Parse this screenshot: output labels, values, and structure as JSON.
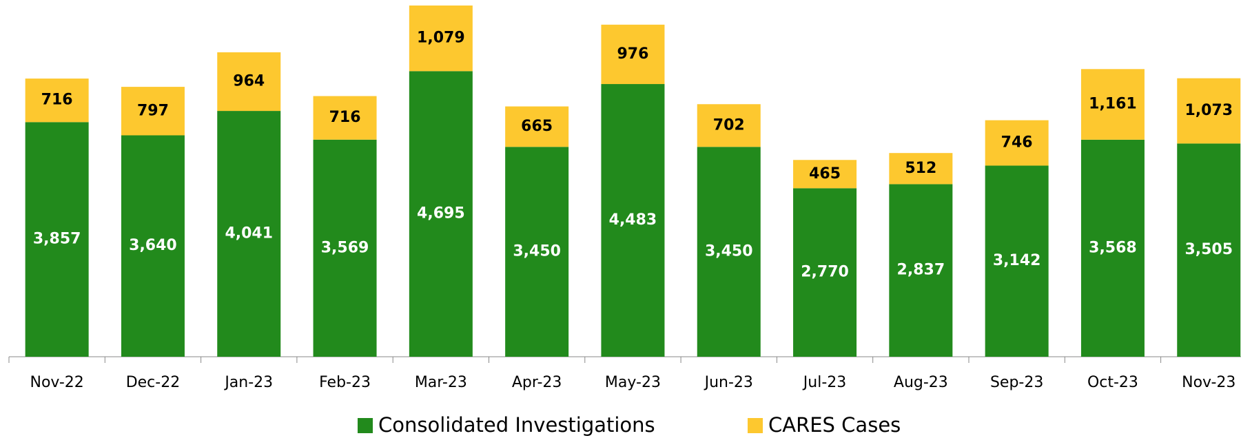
{
  "chart_data": {
    "type": "stacked-bar",
    "categories": [
      "Nov-22",
      "Dec-22",
      "Jan-23",
      "Feb-23",
      "Mar-23",
      "Apr-23",
      "May-23",
      "Jun-23",
      "Jul-23",
      "Aug-23",
      "Sep-23",
      "Oct-23",
      "Nov-23"
    ],
    "series": [
      {
        "name": "Consolidated Investigations",
        "color": "#228a1c",
        "values": [
          3857,
          3640,
          4041,
          3569,
          4695,
          3450,
          4483,
          3450,
          2770,
          2837,
          3142,
          3568,
          3505
        ],
        "value_labels": [
          "3,857",
          "3,640",
          "4,041",
          "3,569",
          "4,695",
          "3,450",
          "4,483",
          "3,450",
          "2,770",
          "2,837",
          "3,142",
          "3,568",
          "3,505"
        ]
      },
      {
        "name": "CARES Cases",
        "color": "#fdc82f",
        "values": [
          716,
          797,
          964,
          716,
          1079,
          665,
          976,
          702,
          465,
          512,
          746,
          1161,
          1073
        ],
        "value_labels": [
          "716",
          "797",
          "964",
          "716",
          "1,079",
          "665",
          "976",
          "702",
          "465",
          "512",
          "746",
          "1,161",
          "1,073"
        ]
      }
    ],
    "legend": "bottom"
  }
}
